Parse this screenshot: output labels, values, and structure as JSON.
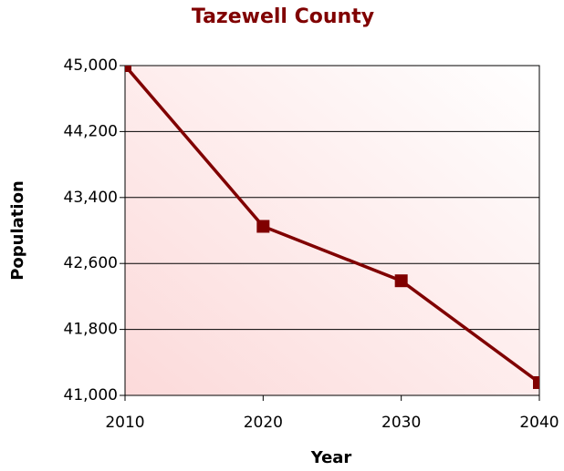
{
  "chart_data": {
    "type": "line",
    "title": "Tazewell County",
    "xlabel": "Year",
    "ylabel": "Population",
    "x": [
      2010,
      2020,
      2030,
      2040
    ],
    "series": [
      {
        "name": "Population",
        "color": "#800000",
        "values": [
          45000,
          43050,
          42390,
          41155
        ]
      }
    ],
    "xlim": [
      2010,
      2040
    ],
    "xticks": [
      2010,
      2020,
      2030,
      2040
    ],
    "ylim": [
      41000,
      45000
    ],
    "yticks": [
      {
        "value": 41000,
        "label": "41,000"
      },
      {
        "value": 41800,
        "label": "41,800"
      },
      {
        "value": 42600,
        "label": "42,600"
      },
      {
        "value": 43400,
        "label": "43,400"
      },
      {
        "value": 44200,
        "label": "44,200"
      },
      {
        "value": 45000,
        "label": "45,000"
      }
    ],
    "grid": true
  }
}
